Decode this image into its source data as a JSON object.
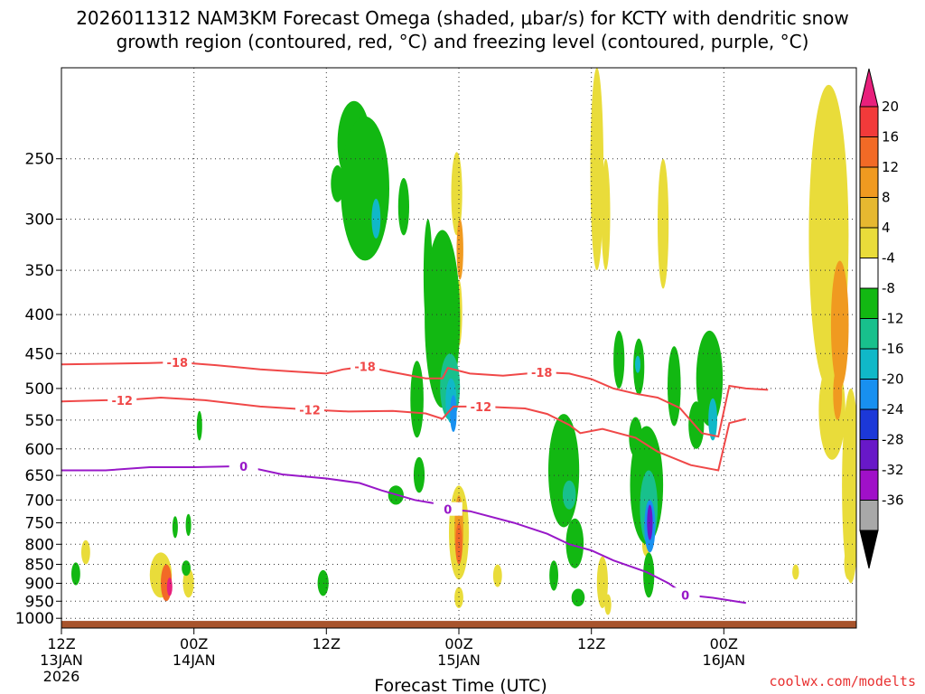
{
  "chart_data": {
    "type": "heatmap",
    "title_line1": "2026011312 NAM3KM Forecast Omega (shaded, μbar/s) for KCTY with dendritic snow",
    "title_line2": "growth region (contoured, red, °C) and freezing level (contoured, purple, °C)",
    "xlabel": "Forecast Time (UTC)",
    "credit": "coolwx.com/modelts",
    "x_range_hours": [
      0,
      72
    ],
    "y_axis": {
      "scale": "log-pressure",
      "units": "mb",
      "range": [
        1030,
        190
      ]
    },
    "y_ticks": [
      250,
      300,
      350,
      400,
      450,
      500,
      550,
      600,
      650,
      700,
      750,
      800,
      850,
      900,
      950,
      1000
    ],
    "x_ticks": [
      {
        "hour": 0,
        "line1": "12Z",
        "line2": "13JAN",
        "line3": "2026"
      },
      {
        "hour": 12,
        "line1": "00Z",
        "line2": "14JAN",
        "line3": ""
      },
      {
        "hour": 24,
        "line1": "12Z",
        "line2": "",
        "line3": ""
      },
      {
        "hour": 36,
        "line1": "00Z",
        "line2": "15JAN",
        "line3": ""
      },
      {
        "hour": 48,
        "line1": "12Z",
        "line2": "",
        "line3": ""
      },
      {
        "hour": 60,
        "line1": "00Z",
        "line2": "16JAN",
        "line3": ""
      }
    ],
    "colorbar": {
      "levels": [
        20,
        16,
        12,
        8,
        4,
        -4,
        -8,
        -12,
        -16,
        -20,
        -24,
        -28,
        -32,
        -36
      ],
      "colors": [
        "#e8207c",
        "#f23a3a",
        "#f26a26",
        "#f09a20",
        "#e6b830",
        "#e9dc3a",
        "#ffffff",
        "#12b812",
        "#18c08c",
        "#10b8c8",
        "#1890f0",
        "#1c38d8",
        "#6818c8",
        "#a010c8",
        "#a8a8a8",
        "#000000"
      ]
    },
    "contours": {
      "dgz_upper": {
        "label": "-18",
        "color": "#f04848",
        "label_hours": [
          10.5,
          27.5,
          43.5
        ],
        "points": [
          [
            0,
            465
          ],
          [
            8,
            463
          ],
          [
            10.5,
            462
          ],
          [
            14,
            466
          ],
          [
            18,
            472
          ],
          [
            21,
            475
          ],
          [
            24,
            478
          ],
          [
            25.5,
            472
          ],
          [
            27.5,
            468
          ],
          [
            30,
            476
          ],
          [
            33,
            485
          ],
          [
            34.5,
            485
          ],
          [
            35,
            470
          ],
          [
            37,
            478
          ],
          [
            40,
            481
          ],
          [
            43.5,
            476
          ],
          [
            46,
            478
          ],
          [
            48,
            486
          ],
          [
            50,
            500
          ],
          [
            52,
            508
          ],
          [
            54,
            514
          ],
          [
            56,
            530
          ],
          [
            58,
            572
          ],
          [
            59.5,
            578
          ],
          [
            60.5,
            496
          ],
          [
            62,
            500
          ],
          [
            64,
            502
          ]
        ]
      },
      "dgz_lower": {
        "label": "-12",
        "color": "#f04848",
        "label_hours": [
          5.5,
          22.5,
          38
        ],
        "points": [
          [
            0,
            520
          ],
          [
            4,
            518
          ],
          [
            5.5,
            518
          ],
          [
            9,
            514
          ],
          [
            13,
            518
          ],
          [
            18,
            528
          ],
          [
            22.5,
            533
          ],
          [
            26,
            536
          ],
          [
            30,
            535
          ],
          [
            33,
            539
          ],
          [
            34.5,
            548
          ],
          [
            35.5,
            528
          ],
          [
            38,
            528
          ],
          [
            42,
            531
          ],
          [
            44,
            540
          ],
          [
            46,
            558
          ],
          [
            47,
            572
          ],
          [
            49,
            565
          ],
          [
            52,
            580
          ],
          [
            54,
            605
          ],
          [
            57,
            630
          ],
          [
            59.5,
            640
          ],
          [
            60.5,
            555
          ],
          [
            62,
            548
          ]
        ]
      },
      "freezing": {
        "label": "0",
        "color": "#9818c8",
        "label_hours": [
          16.5,
          35,
          56.5
        ],
        "points": [
          [
            0,
            640
          ],
          [
            4,
            640
          ],
          [
            8,
            634
          ],
          [
            12,
            634
          ],
          [
            16.5,
            632
          ],
          [
            20,
            648
          ],
          [
            24,
            656
          ],
          [
            27,
            665
          ],
          [
            29,
            680
          ],
          [
            32,
            700
          ],
          [
            34,
            708
          ],
          [
            35,
            720
          ],
          [
            37,
            724
          ],
          [
            41,
            750
          ],
          [
            44,
            775
          ],
          [
            46,
            800
          ],
          [
            48,
            815
          ],
          [
            50,
            840
          ],
          [
            53,
            870
          ],
          [
            55,
            900
          ],
          [
            56.5,
            932
          ],
          [
            59,
            940
          ],
          [
            62,
            955
          ]
        ]
      }
    },
    "omega_blobs_note": "upward motion (negative omega) shaded green to purple; positive omega shaded yellow to red"
  }
}
